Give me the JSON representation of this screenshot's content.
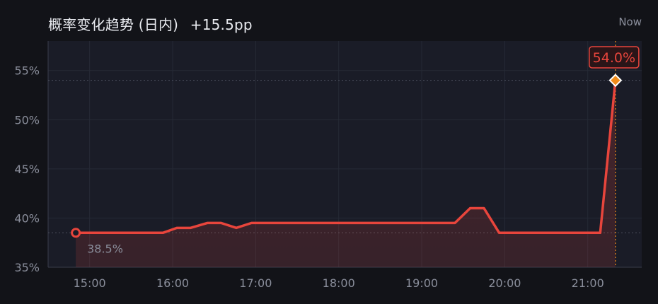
{
  "header": {
    "title": "概率变化趋势 (日内)",
    "change": "+15.5pp",
    "now_label": "Now"
  },
  "colors": {
    "line": "#e8453c",
    "marker_end": "#f08c1a",
    "grid": "#262a36",
    "plot_bg": "#1a1c27"
  },
  "chart_data": {
    "type": "line",
    "title": "概率变化趋势 (日内)",
    "xlabel": "",
    "ylabel": "",
    "x_ticks": [
      "15:00",
      "16:00",
      "17:00",
      "18:00",
      "19:00",
      "20:00",
      "21:00"
    ],
    "y_ticks": [
      "35%",
      "40%",
      "45%",
      "50%",
      "55%"
    ],
    "ylim": [
      35,
      58
    ],
    "xlim_hours": [
      14.5,
      21.65
    ],
    "grid": true,
    "start_label": "38.5%",
    "end_label": "54.0%",
    "series": [
      {
        "points": [
          {
            "t": "14:50",
            "v": 38.5
          },
          {
            "t": "15:53",
            "v": 38.5
          },
          {
            "t": "16:03",
            "v": 39.0
          },
          {
            "t": "16:13",
            "v": 39.0
          },
          {
            "t": "16:25",
            "v": 39.5
          },
          {
            "t": "16:35",
            "v": 39.5
          },
          {
            "t": "16:46",
            "v": 39.0
          },
          {
            "t": "16:57",
            "v": 39.5
          },
          {
            "t": "19:24",
            "v": 39.5
          },
          {
            "t": "19:35",
            "v": 41.0
          },
          {
            "t": "19:45",
            "v": 41.0
          },
          {
            "t": "19:56",
            "v": 38.5
          },
          {
            "t": "21:09",
            "v": 38.5
          },
          {
            "t": "21:20",
            "v": 54.0
          }
        ]
      }
    ]
  }
}
